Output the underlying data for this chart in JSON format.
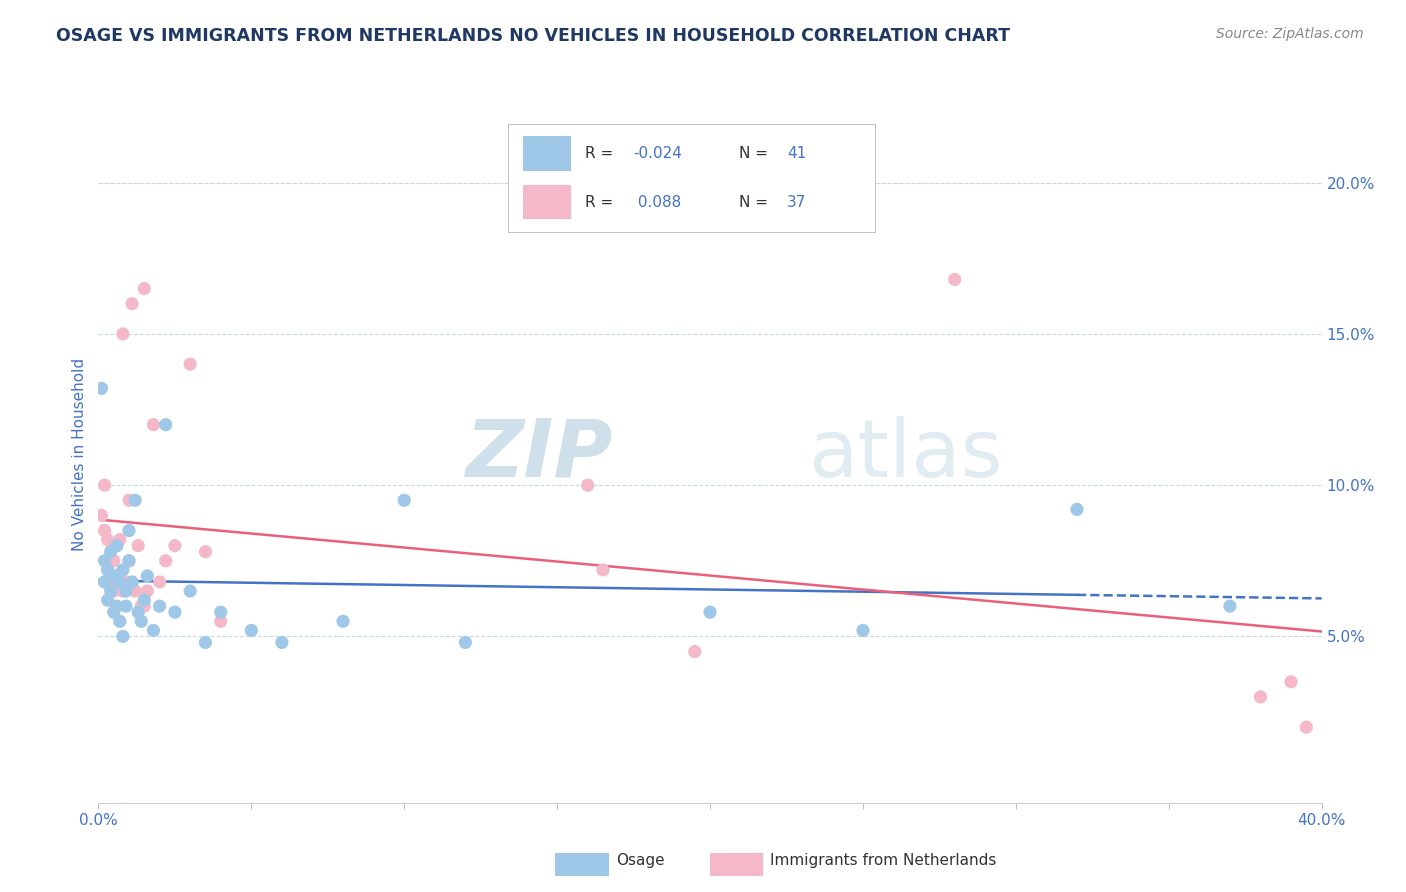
{
  "title": "OSAGE VS IMMIGRANTS FROM NETHERLANDS NO VEHICLES IN HOUSEHOLD CORRELATION CHART",
  "source": "Source: ZipAtlas.com",
  "ylabel": "No Vehicles in Household",
  "xlim": [
    0.0,
    0.4
  ],
  "ylim": [
    -0.005,
    0.225
  ],
  "yticks_right": [
    0.05,
    0.1,
    0.15,
    0.2
  ],
  "ytick_labels_right": [
    "5.0%",
    "10.0%",
    "15.0%",
    "20.0%"
  ],
  "xtick_positions": [
    0.0,
    0.05,
    0.1,
    0.15,
    0.2,
    0.25,
    0.3,
    0.35,
    0.4
  ],
  "xtick_labels_edge": [
    "0.0%",
    "",
    "",
    "",
    "",
    "",
    "",
    "",
    "40.0%"
  ],
  "color_blue": "#9ec7e8",
  "color_pink": "#f4b8c8",
  "color_blue_line": "#4472c4",
  "color_pink_line": "#e8607a",
  "color_title": "#1f3864",
  "color_source": "#888888",
  "color_axis_label": "#4472c4",
  "color_tick_label": "#4472c4",
  "color_grid": "#c8d8e8",
  "watermark_text": "ZIPatlas",
  "watermark_color": "#d0e4f0",
  "legend_r1": "R = -0.024",
  "legend_n1": "N = 41",
  "legend_r2": "R =  0.088",
  "legend_n2": "N = 37",
  "osage_x": [
    0.001,
    0.002,
    0.002,
    0.003,
    0.003,
    0.004,
    0.004,
    0.005,
    0.005,
    0.006,
    0.006,
    0.007,
    0.007,
    0.008,
    0.008,
    0.009,
    0.009,
    0.01,
    0.01,
    0.011,
    0.012,
    0.013,
    0.014,
    0.015,
    0.016,
    0.018,
    0.02,
    0.022,
    0.025,
    0.03,
    0.035,
    0.04,
    0.05,
    0.06,
    0.08,
    0.1,
    0.12,
    0.2,
    0.25,
    0.32,
    0.37
  ],
  "osage_y": [
    0.132,
    0.068,
    0.075,
    0.072,
    0.062,
    0.078,
    0.065,
    0.058,
    0.07,
    0.08,
    0.06,
    0.055,
    0.068,
    0.072,
    0.05,
    0.065,
    0.06,
    0.085,
    0.075,
    0.068,
    0.095,
    0.058,
    0.055,
    0.062,
    0.07,
    0.052,
    0.06,
    0.12,
    0.058,
    0.065,
    0.048,
    0.058,
    0.052,
    0.048,
    0.055,
    0.095,
    0.048,
    0.058,
    0.052,
    0.092,
    0.06
  ],
  "neth_x": [
    0.001,
    0.002,
    0.002,
    0.003,
    0.003,
    0.004,
    0.005,
    0.005,
    0.006,
    0.006,
    0.007,
    0.008,
    0.009,
    0.01,
    0.01,
    0.011,
    0.012,
    0.013,
    0.014,
    0.015,
    0.016,
    0.018,
    0.02,
    0.022,
    0.025,
    0.03,
    0.035,
    0.04,
    0.16,
    0.165,
    0.195,
    0.28,
    0.38,
    0.39,
    0.395,
    0.015,
    0.008
  ],
  "neth_y": [
    0.09,
    0.085,
    0.1,
    0.082,
    0.072,
    0.068,
    0.075,
    0.065,
    0.07,
    0.08,
    0.082,
    0.065,
    0.068,
    0.075,
    0.095,
    0.16,
    0.065,
    0.08,
    0.06,
    0.06,
    0.065,
    0.12,
    0.068,
    0.075,
    0.08,
    0.14,
    0.078,
    0.055,
    0.1,
    0.072,
    0.045,
    0.168,
    0.03,
    0.035,
    0.02,
    0.165,
    0.15
  ]
}
